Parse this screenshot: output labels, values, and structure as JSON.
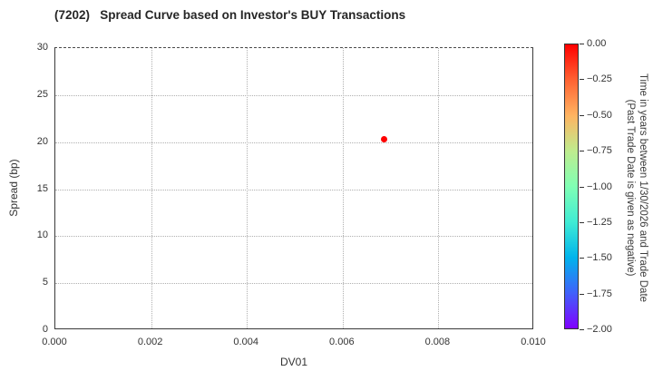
{
  "title": "(7202)   Spread Curve based on Investor's BUY Transactions",
  "chart_data": {
    "type": "scatter",
    "title": "(7202)   Spread Curve based on Investor's BUY Transactions",
    "xlabel": "DV01",
    "ylabel": "Spread (bp)",
    "xlim": [
      0.0,
      0.01
    ],
    "ylim": [
      0,
      30
    ],
    "grid": true,
    "xticks": {
      "values": [
        0.0,
        0.002,
        0.004,
        0.006,
        0.008,
        0.01
      ],
      "labels": [
        "0.000",
        "0.002",
        "0.004",
        "0.006",
        "0.008",
        "0.010"
      ]
    },
    "yticks": {
      "values": [
        0,
        5,
        10,
        15,
        20,
        25,
        30
      ],
      "labels": [
        "0",
        "5",
        "10",
        "15",
        "20",
        "25",
        "30"
      ]
    },
    "points": [
      {
        "x": 0.00687,
        "y": 20.35,
        "time_years": 0.0,
        "color": "#ff0000"
      }
    ],
    "colorbar": {
      "title_lines": [
        "Time in years between 1/30/2026 and Trade Date",
        "(Past Trade Date is given as negative)"
      ],
      "range": [
        -2.0,
        0.0
      ],
      "ticks": {
        "values": [
          0.0,
          -0.25,
          -0.5,
          -0.75,
          -1.0,
          -1.25,
          -1.5,
          -1.75,
          -2.0
        ],
        "labels": [
          "0.00",
          "−0.25",
          "−0.50",
          "−0.75",
          "−1.00",
          "−1.25",
          "−1.50",
          "−1.75",
          "−2.00"
        ]
      },
      "gradient": [
        {
          "value": 0.0,
          "color": "#ff0000"
        },
        {
          "value": -0.25,
          "color": "#ff6232"
        },
        {
          "value": -0.5,
          "color": "#ffb461"
        },
        {
          "value": -0.75,
          "color": "#bfec8e"
        },
        {
          "value": -1.0,
          "color": "#80ffb4"
        },
        {
          "value": -1.25,
          "color": "#40ecd4"
        },
        {
          "value": -1.5,
          "color": "#00b4ec"
        },
        {
          "value": -1.75,
          "color": "#4061fa"
        },
        {
          "value": -2.0,
          "color": "#8000ff"
        }
      ]
    },
    "colors": {
      "grid": "#b0b0b0",
      "spine": "#3a3a3a",
      "text": "#333333"
    }
  }
}
